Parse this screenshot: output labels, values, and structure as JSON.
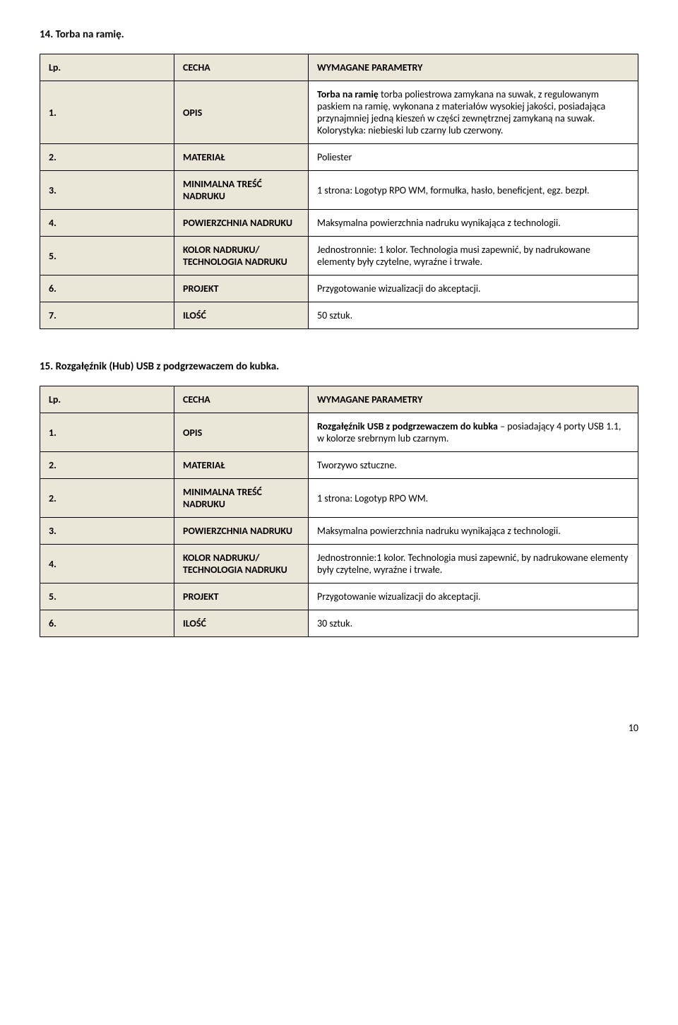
{
  "section1": {
    "title": "14. Torba na ramię.",
    "headers": {
      "lp": "Lp.",
      "cecha": "CECHA",
      "param": "WYMAGANE PARAMETRY"
    },
    "rows": [
      {
        "num": "1.",
        "label": "OPIS",
        "param_lead": "Torba na ramię",
        "param_rest": " torba poliestrowa zamykana na suwak, z regulowanym paskiem na ramię, wykonana z materiałów wysokiej jakości, posiadająca przynajmniej jedną kieszeń w części zewnętrznej zamykaną na suwak. Kolorystyka: niebieski lub czarny lub czerwony."
      },
      {
        "num": "2.",
        "label": "MATERIAŁ",
        "param": "Poliester"
      },
      {
        "num": "3.",
        "label": "MINIMALNA TREŚĆ NADRUKU",
        "param": "1 strona: Logotyp RPO WM, formułka, hasło, beneficjent, egz. bezpł."
      },
      {
        "num": "4.",
        "label": "POWIERZCHNIA NADRUKU",
        "param": "Maksymalna powierzchnia nadruku wynikająca z technologii."
      },
      {
        "num": "5.",
        "label": "KOLOR NADRUKU/ TECHNOLOGIA NADRUKU",
        "param": "Jednostronnie: 1 kolor. Technologia musi zapewnić, by nadrukowane elementy były czytelne, wyraźne i trwałe."
      },
      {
        "num": "6.",
        "label": "PROJEKT",
        "param": "Przygotowanie wizualizacji do akceptacji."
      },
      {
        "num": "7.",
        "label": "ILOŚĆ",
        "param": "50 sztuk."
      }
    ]
  },
  "section2": {
    "title": "15. Rozgałęźnik (Hub) USB z podgrzewaczem do kubka.",
    "headers": {
      "lp": "Lp.",
      "cecha": "CECHA",
      "param": "WYMAGANE PARAMETRY"
    },
    "rows": [
      {
        "num": "1.",
        "label": "OPIS",
        "param_lead": "Rozgałęźnik USB z podgrzewaczem do kubka",
        "param_rest": " – posiadający 4 porty USB 1.1, w kolorze srebrnym lub czarnym."
      },
      {
        "num": "2.",
        "label": "MATERIAŁ",
        "param": "Tworzywo sztuczne."
      },
      {
        "num": "2.",
        "label": "MINIMALNA TREŚĆ NADRUKU",
        "param": "1 strona: Logotyp RPO WM."
      },
      {
        "num": "3.",
        "label": "POWIERZCHNIA NADRUKU",
        "param": "Maksymalna powierzchnia nadruku wynikająca z technologii."
      },
      {
        "num": "4.",
        "label": "KOLOR NADRUKU/ TECHNOLOGIA NADRUKU",
        "param": "Jednostronnie:1 kolor. Technologia musi zapewnić, by nadrukowane elementy były czytelne, wyraźne i trwałe."
      },
      {
        "num": "5.",
        "label": "PROJEKT",
        "param": "Przygotowanie wizualizacji do akceptacji."
      },
      {
        "num": "6.",
        "label": "ILOŚĆ",
        "param": "30 sztuk."
      }
    ]
  },
  "page_number": "10",
  "colors": {
    "header_bg": "#ece6d8",
    "border": "#000000",
    "text": "#000000",
    "background": "#ffffff"
  }
}
